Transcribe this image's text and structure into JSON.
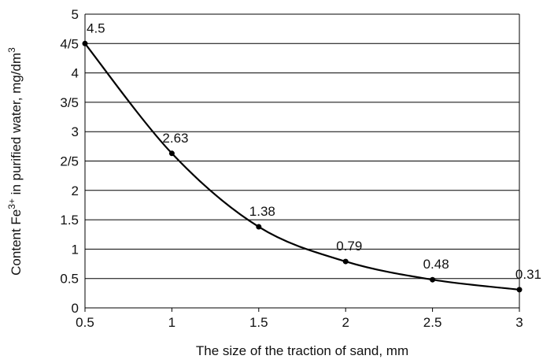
{
  "chart_data": {
    "type": "line",
    "title": "",
    "xlabel": "The size of the traction of sand, mm",
    "ylabel_parts": {
      "prefix": "Content Fe",
      "superscript": "3+",
      "suffix": " in purified water, mg/dm",
      "unit_superscript": "3"
    },
    "x_ticks": [
      "0.5",
      "1",
      "1.5",
      "2",
      "2.5",
      "3"
    ],
    "y_ticks": [
      "0",
      "0.5",
      "1",
      "1.5",
      "2",
      "2/5",
      "3",
      "3/5",
      "4",
      "4/5",
      "5"
    ],
    "xlim": [
      0.5,
      3
    ],
    "ylim": [
      0,
      5
    ],
    "grid": "horizontal",
    "series": [
      {
        "x": [
          0.5,
          1,
          1.5,
          2,
          2.5,
          3
        ],
        "y": [
          4.5,
          2.63,
          1.38,
          0.79,
          0.48,
          0.31
        ],
        "labels": [
          "4.5",
          "2.63",
          "1.38",
          "0.79",
          "0.48",
          "0.31"
        ],
        "color": "#000000"
      }
    ]
  }
}
